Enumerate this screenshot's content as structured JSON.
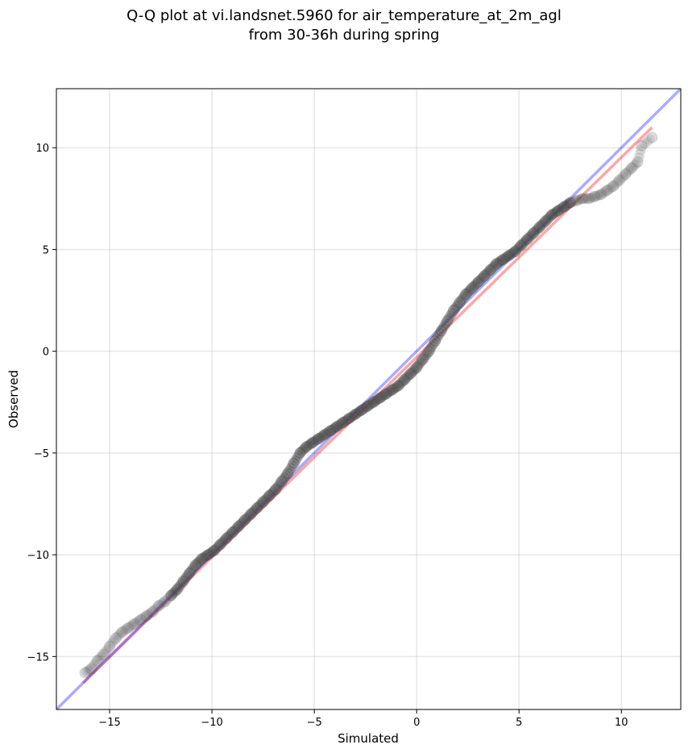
{
  "chart_data": {
    "type": "scatter",
    "title": [
      "Q-Q plot at vi.landsnet.5960 for air_temperature_at_2m_agl",
      "from 30-36h during spring"
    ],
    "xlabel": "Simulated",
    "ylabel": "Observed",
    "xlim": [
      -17.6,
      12.9
    ],
    "ylim": [
      -17.6,
      12.9
    ],
    "xticks": [
      -15,
      -10,
      -5,
      0,
      5,
      10
    ],
    "yticks": [
      -15,
      -10,
      -5,
      0,
      5,
      10
    ],
    "xtick_labels": [
      "−15",
      "−10",
      "−5",
      "0",
      "5",
      "10"
    ],
    "ytick_labels": [
      "−15",
      "−10",
      "−5",
      "0",
      "5",
      "10"
    ],
    "grid": true,
    "colors": {
      "points": "#444444",
      "identity_line": "#0000ff",
      "fit_line": "#ff0000"
    },
    "quantile_points": {
      "x": [
        -16.2,
        -15.9,
        -15.6,
        -15.3,
        -15.0,
        -14.7,
        -14.4,
        -14.1,
        -13.8,
        -13.5,
        -13.2,
        -12.9,
        -12.6,
        -12.3,
        -12.0,
        -11.7,
        -11.4,
        -11.1,
        -10.8,
        -10.5,
        -10.2,
        -9.9,
        -9.6,
        -9.3,
        -9.0,
        -8.7,
        -8.4,
        -8.1,
        -7.8,
        -7.5,
        -7.2,
        -6.9,
        -6.6,
        -6.3,
        -6.0,
        -5.7,
        -5.4,
        -5.1,
        -4.8,
        -4.5,
        -4.2,
        -3.9,
        -3.6,
        -3.3,
        -3.0,
        -2.7,
        -2.4,
        -2.1,
        -1.8,
        -1.5,
        -1.2,
        -0.9,
        -0.6,
        -0.3,
        0.0,
        0.3,
        0.6,
        0.9,
        1.2,
        1.5,
        1.8,
        2.1,
        2.4,
        2.7,
        3.0,
        3.3,
        3.6,
        3.9,
        4.2,
        4.5,
        4.8,
        5.1,
        5.4,
        5.7,
        6.0,
        6.3,
        6.6,
        6.9,
        7.2,
        7.5,
        7.8,
        8.1,
        8.4,
        8.7,
        9.0,
        9.3,
        9.6,
        9.9,
        10.2,
        10.5,
        10.8,
        11.0,
        11.5
      ],
      "y": [
        -15.8,
        -15.6,
        -15.2,
        -14.9,
        -14.5,
        -14.1,
        -13.8,
        -13.6,
        -13.4,
        -13.2,
        -13.0,
        -12.8,
        -12.5,
        -12.3,
        -12.0,
        -11.7,
        -11.3,
        -10.9,
        -10.5,
        -10.2,
        -10.0,
        -9.8,
        -9.5,
        -9.2,
        -8.9,
        -8.6,
        -8.3,
        -8.0,
        -7.7,
        -7.4,
        -7.1,
        -6.8,
        -6.4,
        -6.0,
        -5.5,
        -5.0,
        -4.7,
        -4.5,
        -4.3,
        -4.1,
        -3.9,
        -3.7,
        -3.5,
        -3.3,
        -3.1,
        -2.9,
        -2.7,
        -2.5,
        -2.3,
        -2.1,
        -1.9,
        -1.7,
        -1.4,
        -1.1,
        -0.8,
        -0.4,
        0.0,
        0.5,
        1.0,
        1.5,
        2.0,
        2.4,
        2.8,
        3.1,
        3.4,
        3.7,
        4.0,
        4.3,
        4.5,
        4.7,
        4.9,
        5.2,
        5.5,
        5.8,
        6.1,
        6.4,
        6.7,
        6.9,
        7.1,
        7.3,
        7.4,
        7.5,
        7.5,
        7.6,
        7.7,
        7.9,
        8.1,
        8.4,
        8.7,
        9.0,
        9.3,
        10.1,
        10.5
      ]
    },
    "identity_line": {
      "x": [
        -17.6,
        12.9
      ],
      "y": [
        -17.6,
        12.9
      ]
    },
    "fit_line": {
      "x": [
        -16.3,
        11.5
      ],
      "y": [
        -16.3,
        11.0
      ]
    }
  }
}
